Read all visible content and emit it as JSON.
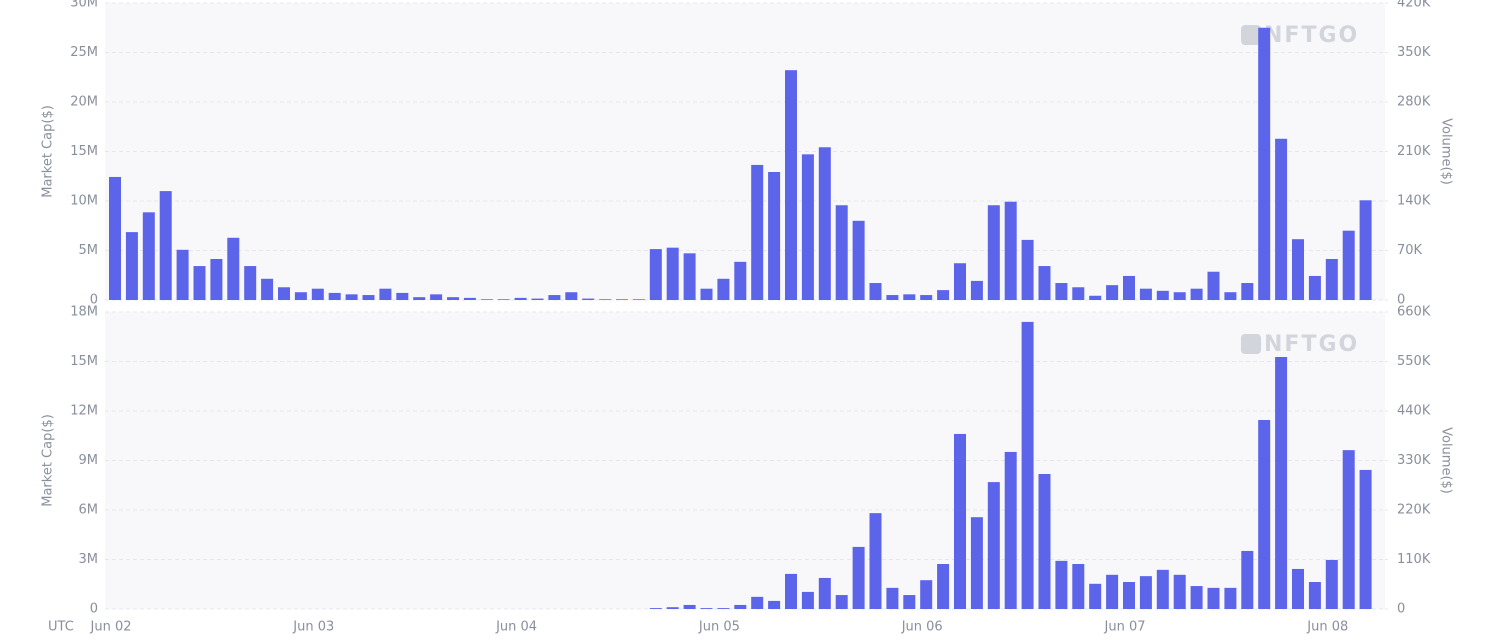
{
  "chart_data": [
    {
      "type": "bar",
      "ylabel": "Market Cap($)",
      "y2label": "Volume($)",
      "watermark": "NFTGO",
      "grid": true,
      "ylim": [
        0,
        30000000
      ],
      "yticks": [
        0,
        {
          "value": 5000000,
          "label": "5M"
        },
        {
          "value": 10000000,
          "label": "10M"
        },
        {
          "value": 15000000,
          "label": "15M"
        },
        {
          "value": 20000000,
          "label": "20M"
        },
        {
          "value": 25000000,
          "label": "25M"
        },
        {
          "value": 30000000,
          "label": "30M"
        }
      ],
      "y2lim": [
        0,
        420000
      ],
      "y2ticks": [
        0,
        {
          "value": 70000,
          "label": "70K"
        },
        {
          "value": 140000,
          "label": "140K"
        },
        {
          "value": 210000,
          "label": "210K"
        },
        {
          "value": 280000,
          "label": "280K"
        },
        {
          "value": 350000,
          "label": "350K"
        },
        {
          "value": 420000,
          "label": "420K"
        }
      ],
      "series": [
        {
          "axis": "y2",
          "color": "#5c64ea",
          "values": [
            174000,
            96000,
            124000,
            154000,
            71000,
            48000,
            58000,
            88000,
            48000,
            30000,
            18000,
            11000,
            16000,
            10000,
            8000,
            7000,
            16000,
            10000,
            4000,
            8000,
            4000,
            3000,
            1000,
            1000,
            3000,
            2000,
            7000,
            11000,
            2000,
            1000,
            1000,
            1000,
            72000,
            74000,
            66000,
            16000,
            30000,
            54000,
            191000,
            181000,
            325000,
            206000,
            216000,
            134000,
            112000,
            24000,
            7000,
            8000,
            7000,
            14000,
            52000,
            27000,
            134000,
            139000,
            85000,
            48000,
            24000,
            18000,
            6000,
            21000,
            34000,
            16000,
            13000,
            11000,
            16000,
            40000,
            11000,
            24000,
            385000,
            228000,
            86000,
            34000,
            58000,
            98000,
            141000
          ]
        }
      ]
    },
    {
      "type": "bar",
      "ylabel": "Market Cap($)",
      "y2label": "Volume($)",
      "watermark": "NFTGO",
      "grid": true,
      "xlabel": "UTC",
      "categories": [
        "Jun 02",
        null,
        null,
        null,
        null,
        null,
        null,
        null,
        null,
        null,
        null,
        null,
        "Jun 03",
        null,
        null,
        null,
        null,
        null,
        null,
        null,
        null,
        null,
        null,
        null,
        "Jun 04",
        null,
        null,
        null,
        null,
        null,
        null,
        null,
        null,
        null,
        null,
        null,
        "Jun 05",
        null,
        null,
        null,
        null,
        null,
        null,
        null,
        null,
        null,
        null,
        null,
        "Jun 06",
        null,
        null,
        null,
        null,
        null,
        null,
        null,
        null,
        null,
        null,
        null,
        "Jun 07",
        null,
        null,
        null,
        null,
        null,
        null,
        null,
        null,
        null,
        null,
        null,
        "Jun 08",
        null,
        null
      ],
      "ylim": [
        0,
        18000000
      ],
      "yticks": [
        0,
        {
          "value": 3000000,
          "label": "3M"
        },
        {
          "value": 6000000,
          "label": "6M"
        },
        {
          "value": 9000000,
          "label": "9M"
        },
        {
          "value": 12000000,
          "label": "12M"
        },
        {
          "value": 15000000,
          "label": "15M"
        },
        {
          "value": 18000000,
          "label": "18M"
        }
      ],
      "y2lim": [
        0,
        660000
      ],
      "y2ticks": [
        0,
        {
          "value": 110000,
          "label": "110K"
        },
        {
          "value": 220000,
          "label": "220K"
        },
        {
          "value": 330000,
          "label": "330K"
        },
        {
          "value": 440000,
          "label": "440K"
        },
        {
          "value": 550000,
          "label": "550K"
        },
        {
          "value": 660000,
          "label": "660K"
        }
      ],
      "series": [
        {
          "axis": "y2",
          "color": "#5c64ea",
          "values": [
            0,
            0,
            0,
            0,
            0,
            0,
            0,
            0,
            0,
            0,
            0,
            0,
            0,
            0,
            0,
            0,
            0,
            0,
            0,
            0,
            0,
            0,
            0,
            0,
            0,
            0,
            0,
            0,
            0,
            0,
            0,
            0,
            2000,
            4000,
            9000,
            2000,
            2000,
            9000,
            27000,
            18000,
            78000,
            38000,
            69000,
            31000,
            138000,
            213000,
            47000,
            31000,
            64000,
            100000,
            389000,
            204000,
            282000,
            349000,
            638000,
            300000,
            107000,
            100000,
            56000,
            76000,
            60000,
            73000,
            87000,
            76000,
            51000,
            47000,
            47000,
            129000,
            420000,
            560000,
            89000,
            60000,
            109000,
            353000,
            309000
          ]
        }
      ]
    }
  ]
}
